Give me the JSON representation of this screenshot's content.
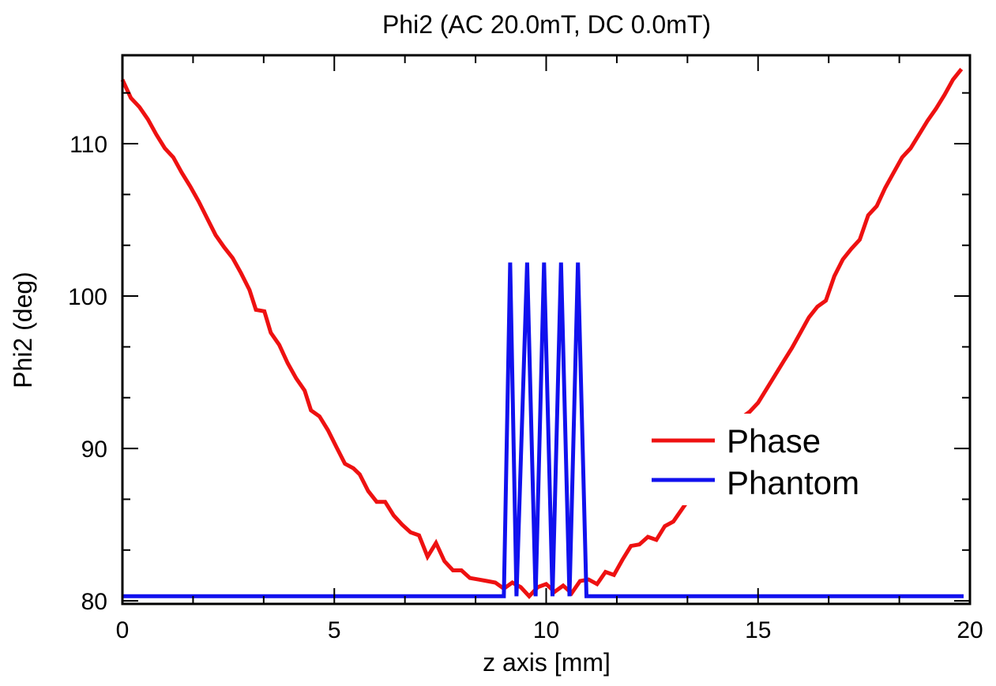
{
  "chart_data": {
    "type": "line",
    "title": "Phi2 (AC 20.0mT, DC  0.0mT)",
    "xlabel": "z axis [mm]",
    "ylabel": "Phi2 (deg)",
    "xlim": [
      0,
      20
    ],
    "ylim": [
      79.8,
      115.8
    ],
    "xticks": [
      0,
      5,
      10,
      15,
      20
    ],
    "xtick_labels": [
      "0",
      "5",
      "10",
      "15",
      "20"
    ],
    "yticks": [
      80,
      90,
      100,
      110
    ],
    "ytick_labels": [
      "80",
      "90",
      "100",
      "110"
    ],
    "x_minor_step": 1.6667,
    "y_minor_step": 3.333,
    "grid": false,
    "legend_position": "center-right",
    "series": [
      {
        "name": "Phase",
        "color": "#ee1111",
        "points": [
          [
            0.0,
            114.2
          ],
          [
            0.2,
            113.0
          ],
          [
            0.4,
            112.4
          ],
          [
            0.6,
            111.6
          ],
          [
            0.8,
            110.6
          ],
          [
            1.0,
            109.7
          ],
          [
            1.2,
            109.1
          ],
          [
            1.4,
            108.1
          ],
          [
            1.6,
            107.2
          ],
          [
            1.8,
            106.2
          ],
          [
            2.0,
            105.1
          ],
          [
            2.2,
            104.0
          ],
          [
            2.4,
            103.2
          ],
          [
            2.6,
            102.5
          ],
          [
            2.8,
            101.5
          ],
          [
            3.0,
            100.4
          ],
          [
            3.15,
            99.1
          ],
          [
            3.35,
            99.0
          ],
          [
            3.5,
            97.6
          ],
          [
            3.7,
            96.8
          ],
          [
            3.9,
            95.6
          ],
          [
            4.1,
            94.6
          ],
          [
            4.3,
            93.8
          ],
          [
            4.45,
            92.5
          ],
          [
            4.65,
            92.1
          ],
          [
            4.85,
            91.2
          ],
          [
            5.05,
            90.1
          ],
          [
            5.25,
            89.0
          ],
          [
            5.45,
            88.7
          ],
          [
            5.6,
            88.3
          ],
          [
            5.8,
            87.2
          ],
          [
            6.0,
            86.5
          ],
          [
            6.2,
            86.5
          ],
          [
            6.4,
            85.6
          ],
          [
            6.6,
            85.0
          ],
          [
            6.8,
            84.5
          ],
          [
            7.0,
            84.3
          ],
          [
            7.2,
            82.9
          ],
          [
            7.4,
            83.8
          ],
          [
            7.6,
            82.6
          ],
          [
            7.8,
            82.0
          ],
          [
            8.0,
            82.0
          ],
          [
            8.2,
            81.5
          ],
          [
            8.4,
            81.4
          ],
          [
            8.6,
            81.3
          ],
          [
            8.8,
            81.2
          ],
          [
            9.0,
            80.8
          ],
          [
            9.2,
            81.2
          ],
          [
            9.4,
            80.9
          ],
          [
            9.6,
            80.3
          ],
          [
            9.8,
            80.9
          ],
          [
            10.0,
            81.1
          ],
          [
            10.2,
            80.6
          ],
          [
            10.4,
            81.0
          ],
          [
            10.6,
            80.5
          ],
          [
            10.8,
            81.3
          ],
          [
            11.0,
            81.4
          ],
          [
            11.2,
            81.1
          ],
          [
            11.4,
            81.9
          ],
          [
            11.6,
            81.7
          ],
          [
            11.8,
            82.7
          ],
          [
            12.0,
            83.6
          ],
          [
            12.2,
            83.7
          ],
          [
            12.4,
            84.2
          ],
          [
            12.6,
            84.0
          ],
          [
            12.8,
            84.9
          ],
          [
            13.0,
            85.2
          ],
          [
            13.2,
            86.0
          ],
          [
            13.4,
            86.8
          ],
          [
            13.6,
            87.6
          ],
          [
            13.8,
            88.5
          ],
          [
            14.0,
            89.4
          ],
          [
            14.2,
            90.4
          ],
          [
            14.4,
            91.4
          ],
          [
            14.6,
            92.0
          ],
          [
            14.8,
            92.4
          ],
          [
            15.0,
            93.0
          ],
          [
            15.2,
            93.9
          ],
          [
            15.4,
            94.8
          ],
          [
            15.6,
            95.7
          ],
          [
            15.8,
            96.6
          ],
          [
            16.0,
            97.6
          ],
          [
            16.2,
            98.6
          ],
          [
            16.4,
            99.3
          ],
          [
            16.6,
            99.7
          ],
          [
            16.8,
            101.3
          ],
          [
            17.0,
            102.4
          ],
          [
            17.2,
            103.1
          ],
          [
            17.4,
            103.7
          ],
          [
            17.6,
            105.3
          ],
          [
            17.8,
            105.9
          ],
          [
            18.0,
            107.1
          ],
          [
            18.2,
            108.1
          ],
          [
            18.4,
            109.1
          ],
          [
            18.6,
            109.7
          ],
          [
            18.8,
            110.6
          ],
          [
            19.0,
            111.5
          ],
          [
            19.2,
            112.3
          ],
          [
            19.4,
            113.2
          ],
          [
            19.6,
            114.2
          ],
          [
            19.8,
            114.9
          ]
        ]
      },
      {
        "name": "Phantom",
        "color": "#1111ee",
        "points": [
          [
            0.0,
            80.3
          ],
          [
            9.0,
            80.3
          ],
          [
            9.15,
            102.2
          ],
          [
            9.3,
            80.3
          ],
          [
            9.55,
            102.2
          ],
          [
            9.75,
            80.3
          ],
          [
            9.95,
            102.2
          ],
          [
            10.15,
            80.3
          ],
          [
            10.35,
            102.2
          ],
          [
            10.55,
            80.3
          ],
          [
            10.75,
            102.2
          ],
          [
            10.95,
            80.3
          ],
          [
            19.85,
            80.3
          ]
        ]
      }
    ]
  }
}
